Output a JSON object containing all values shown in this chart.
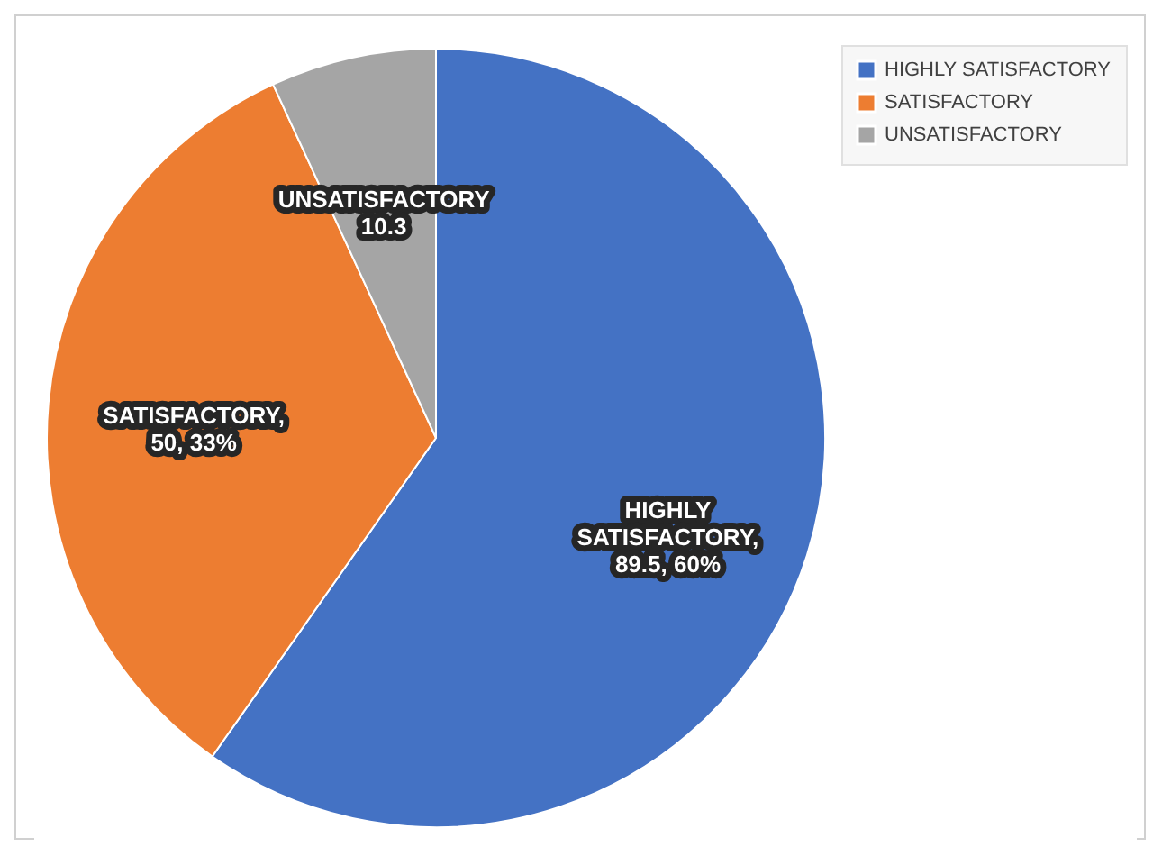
{
  "chart_data": {
    "type": "pie",
    "categories": [
      "HIGHLY SATISFACTORY",
      "SATISFACTORY",
      "UNSATISFACTORY"
    ],
    "values": [
      89.5,
      50,
      10.3
    ],
    "colors": [
      "#4472c4",
      "#ed7d31",
      "#a5a5a5"
    ],
    "value_labels": [
      "HIGHLY SATISFACTORY, 89.5, 60%",
      "SATISFACTORY, 50, 33%",
      "UNSATISFACTORY 10.3"
    ],
    "legend": "right"
  }
}
